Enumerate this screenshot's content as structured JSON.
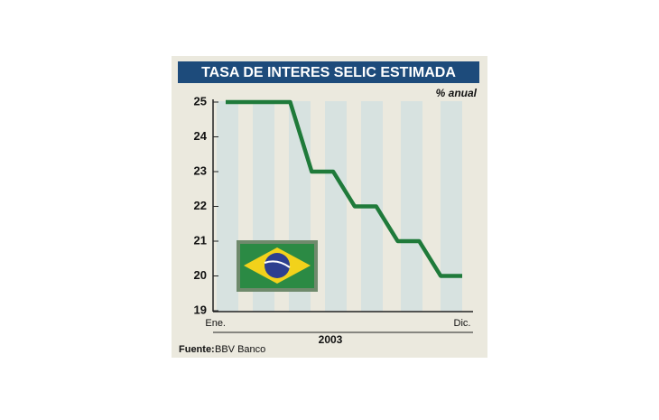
{
  "chart_data": {
    "type": "line",
    "title": "TASA DE INTERES SELIC ESTIMADA",
    "unit_label": "% anual",
    "x_label": "2003",
    "source_label": "Fuente:",
    "source": "BBV Banco",
    "categories": [
      "Ene.",
      null,
      null,
      null,
      null,
      null,
      null,
      null,
      null,
      null,
      null,
      "Dic."
    ],
    "values": [
      25,
      25,
      25,
      25,
      23,
      23,
      22,
      22,
      21,
      21,
      20,
      20
    ],
    "color": "#1f7a3a",
    "ylim": [
      19,
      25
    ],
    "yticks": [
      19,
      20,
      21,
      22,
      23,
      24,
      25
    ]
  }
}
